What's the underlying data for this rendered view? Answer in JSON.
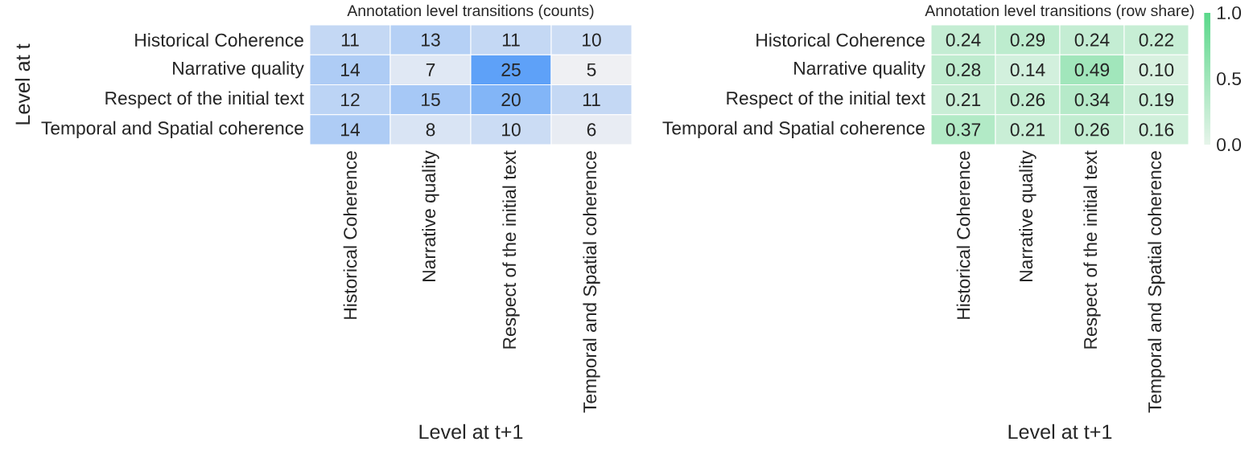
{
  "chart_data": [
    {
      "type": "heatmap",
      "title": "Annotation level transitions (counts)",
      "xlabel": "Level at t+1",
      "ylabel": "Level at t",
      "categories": [
        "Historical Coherence",
        "Narrative quality",
        "Respect of the initial text",
        "Temporal and Spatial coherence"
      ],
      "y_categories": [
        "Historical Coherence",
        "Narrative quality",
        "Respect of the initial text",
        "Temporal and Spatial coherence"
      ],
      "cells": [
        [
          11,
          13,
          11,
          10
        ],
        [
          14,
          7,
          25,
          5
        ],
        [
          12,
          15,
          20,
          11
        ],
        [
          14,
          8,
          10,
          6
        ]
      ],
      "data_labels": true
    },
    {
      "type": "heatmap",
      "title": "Annotation level transitions (row share)",
      "xlabel": "Level at t+1",
      "categories": [
        "Historical Coherence",
        "Narrative quality",
        "Respect of the initial text",
        "Temporal and Spatial coherence"
      ],
      "y_categories": [
        "Historical Coherence",
        "Narrative quality",
        "Respect of the initial text",
        "Temporal and Spatial coherence"
      ],
      "cells": [
        [
          0.24,
          0.29,
          0.24,
          0.22
        ],
        [
          0.28,
          0.14,
          0.49,
          0.1
        ],
        [
          0.21,
          0.26,
          0.34,
          0.19
        ],
        [
          0.37,
          0.21,
          0.26,
          0.16
        ]
      ],
      "cell_labels": [
        [
          "0.24",
          "0.29",
          "0.24",
          "0.22"
        ],
        [
          "0.28",
          "0.14",
          "0.49",
          "0.10"
        ],
        [
          "0.21",
          "0.26",
          "0.34",
          "0.19"
        ],
        [
          "0.37",
          "0.21",
          "0.26",
          "0.16"
        ]
      ],
      "clim": [
        0,
        1
      ],
      "cticks": [
        {
          "value": 0,
          "label": "0.0"
        },
        {
          "value": 0.5,
          "label": "0.5"
        },
        {
          "value": 1,
          "label": "1.0"
        }
      ]
    }
  ]
}
